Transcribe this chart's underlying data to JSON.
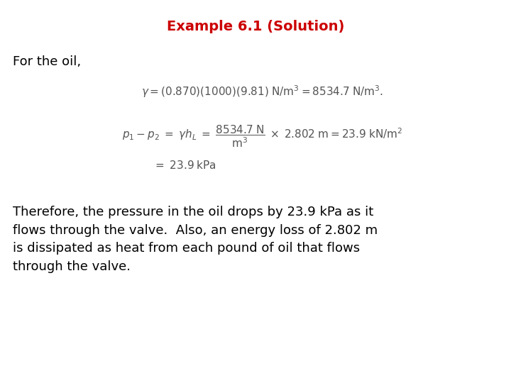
{
  "title": "Example 6.1 (Solution)",
  "title_color": "#cc0000",
  "title_fontsize": 14,
  "background_color": "#ffffff",
  "text_color": "#000000",
  "for_the_oil_text": "For the oil,",
  "for_the_oil_fontsize": 13,
  "paragraph_text": "Therefore, the pressure in the oil drops by 23.9 kPa as it\nflows through the valve.  Also, an energy loss of 2.802 m\nis dissipated as heat from each pound of oil that flows\nthrough the valve.",
  "paragraph_fontsize": 13,
  "eq_fontsize": 11,
  "eq_small_fontsize": 9
}
